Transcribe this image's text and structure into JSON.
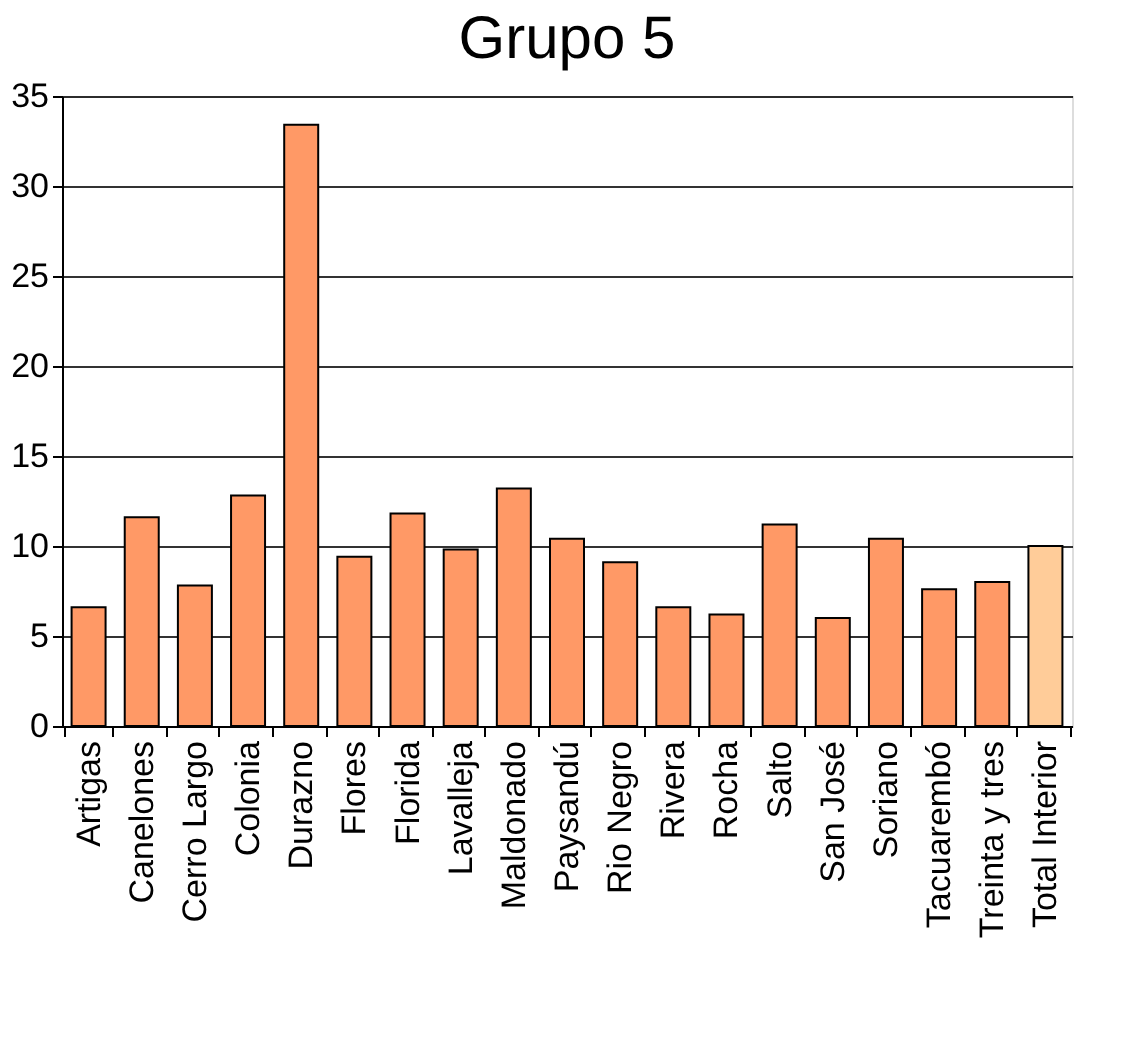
{
  "chart_data": {
    "type": "bar",
    "title": "Grupo 5",
    "categories": [
      "Artigas",
      "Canelones",
      "Cerro Largo",
      "Colonia",
      "Durazno",
      "Flores",
      "Florida",
      "Lavalleja",
      "Maldonado",
      "Paysandú",
      "Rio Negro",
      "Rivera",
      "Rocha",
      "Salto",
      "San José",
      "Soriano",
      "Tacuarembó",
      "Treinta y tres",
      "Total Interior"
    ],
    "values": [
      6.6,
      11.6,
      7.8,
      12.8,
      33.4,
      9.4,
      11.8,
      9.8,
      13.2,
      10.4,
      9.1,
      6.6,
      6.2,
      11.2,
      6.0,
      10.4,
      7.6,
      8.0,
      10.0
    ],
    "colors": [
      "#ff9966",
      "#ff9966",
      "#ff9966",
      "#ff9966",
      "#ff9966",
      "#ff9966",
      "#ff9966",
      "#ff9966",
      "#ff9966",
      "#ff9966",
      "#ff9966",
      "#ff9966",
      "#ff9966",
      "#ff9966",
      "#ff9966",
      "#ff9966",
      "#ff9966",
      "#ff9966",
      "#ffcc99"
    ],
    "ylim": [
      0,
      35
    ],
    "yticks": [
      0,
      5,
      10,
      15,
      20,
      25,
      30,
      35
    ],
    "grid": "y",
    "legend": false
  }
}
